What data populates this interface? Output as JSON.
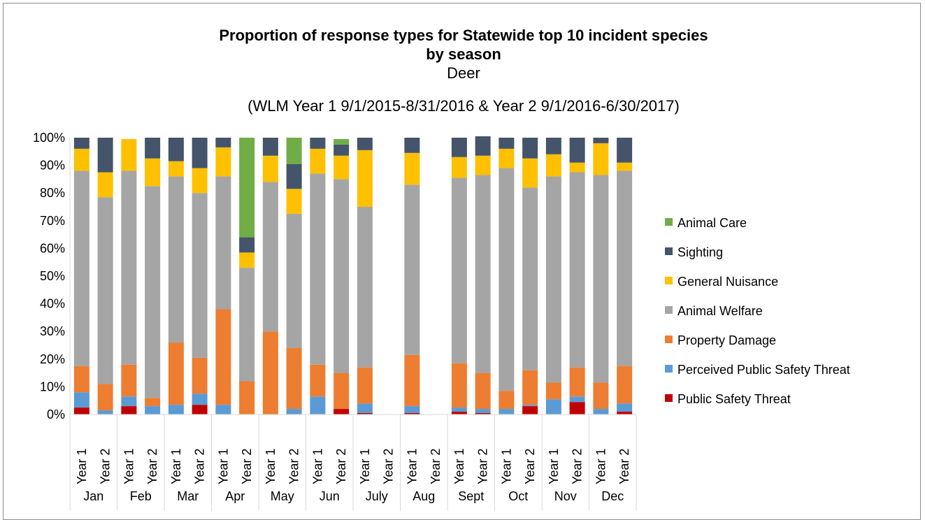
{
  "chart_data": {
    "type": "bar",
    "stacked": true,
    "normalized": true,
    "title": "Proportion of response types for Statewide top 10 incident species by season",
    "subtitle": "Deer",
    "subtitle2": "(WLM Year 1 9/1/2015-8/31/2016 & Year 2 9/1/2016-6/30/2017)",
    "y_ticks": [
      "0%",
      "10%",
      "20%",
      "30%",
      "40%",
      "50%",
      "60%",
      "70%",
      "80%",
      "90%",
      "100%"
    ],
    "ylim": [
      0,
      100
    ],
    "grid": false,
    "legend_position": "right",
    "months": [
      "Jan",
      "Feb",
      "Mar",
      "Apr",
      "May",
      "Jun",
      "July",
      "Aug",
      "Sept",
      "Oct",
      "Nov",
      "Dec"
    ],
    "years": [
      "Year 1",
      "Year 2"
    ],
    "series": [
      {
        "name": "Public Safety Threat",
        "color": "#c00000",
        "values": [
          2.5,
          0,
          3,
          0,
          0,
          3.5,
          0,
          0,
          0,
          0,
          0,
          2,
          0.5,
          0,
          0.5,
          0,
          1,
          0.5,
          0,
          3,
          0,
          4.5,
          0,
          1
        ]
      },
      {
        "name": "Perceived Public Safety Threat",
        "color": "#5b9bd5",
        "values": [
          5.5,
          1.5,
          3.5,
          3,
          3.5,
          4,
          3.5,
          0,
          0,
          2,
          6.5,
          0,
          3.5,
          0,
          2.5,
          0,
          1.5,
          1.5,
          2,
          0.5,
          5.5,
          2,
          2,
          3
        ]
      },
      {
        "name": "Property Damage",
        "color": "#ed7d31",
        "values": [
          9.5,
          9.5,
          11.5,
          3,
          22.5,
          13,
          34.5,
          12,
          30,
          22,
          11.5,
          13,
          13,
          0,
          18.5,
          0,
          16,
          13,
          6.5,
          12.5,
          6,
          10.5,
          9.5,
          13.5
        ]
      },
      {
        "name": "Animal Welfare",
        "color": "#a5a5a5",
        "values": [
          70.5,
          67.5,
          70,
          76.5,
          60,
          59.5,
          48,
          41,
          54,
          48.5,
          69,
          70,
          58,
          0,
          61.5,
          0,
          67,
          71.5,
          80.5,
          66,
          74.5,
          70.5,
          75,
          70.5
        ]
      },
      {
        "name": "General Nuisance",
        "color": "#ffc000",
        "values": [
          8,
          9,
          11.5,
          10,
          5.5,
          9,
          10.5,
          5.5,
          9.5,
          9,
          9,
          8.5,
          20.5,
          0,
          11.5,
          0,
          7.5,
          7,
          7,
          10.5,
          8,
          3.5,
          11.5,
          3
        ]
      },
      {
        "name": "Sighting",
        "color": "#44546a",
        "values": [
          4,
          12.5,
          0,
          7.5,
          8.5,
          11,
          3.5,
          5.5,
          6.5,
          9,
          4,
          4,
          4.5,
          0,
          5.5,
          0,
          7,
          7,
          4,
          7.5,
          6,
          9,
          2,
          9
        ]
      },
      {
        "name": "Animal Care",
        "color": "#70ad47",
        "values": [
          0,
          0,
          0,
          0,
          0,
          0,
          0,
          36,
          0,
          9.5,
          0,
          2,
          0,
          0,
          0,
          0,
          0,
          0,
          0,
          0,
          0,
          0,
          0,
          0
        ]
      }
    ]
  }
}
